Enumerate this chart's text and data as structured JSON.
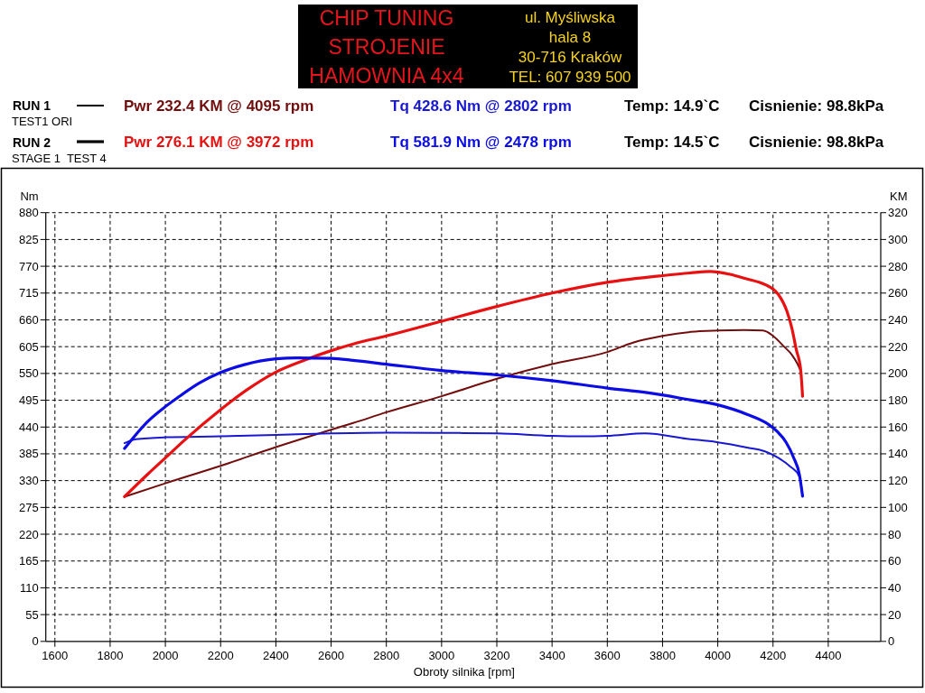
{
  "chart_data": {
    "type": "line",
    "xlabel": "Obroty silnika [rpm]",
    "ylabel": "Nm",
    "y2label": "KM",
    "xlim": [
      1567,
      4590
    ],
    "xticks": [
      1600,
      1800,
      2000,
      2200,
      2400,
      2600,
      2800,
      3000,
      3200,
      3400,
      3600,
      3800,
      4000,
      4200,
      4400
    ],
    "ylim": [
      0,
      880
    ],
    "yticks": [
      0,
      55,
      110,
      165,
      220,
      275,
      330,
      385,
      440,
      495,
      550,
      605,
      660,
      715,
      770,
      825,
      880
    ],
    "y2lim": [
      0,
      320
    ],
    "y2ticks": [
      0,
      20,
      40,
      60,
      80,
      100,
      120,
      140,
      160,
      180,
      200,
      220,
      240,
      260,
      280,
      300,
      320
    ],
    "grid": true,
    "legend": "top",
    "line_style": "solid",
    "annotations": [
      "CHIP TUNING",
      "STROJENIE",
      "HAMOWNIA 4x4",
      "ul. Myśliwska",
      "hala 8",
      "30-716 Kraków",
      "TEL: 607 939 500",
      "RUN 1",
      "TEST1 ORI",
      "Temp: 14.9`C",
      "Cisnienie: 98.8kPa",
      "RUN 2",
      "STAGE 1  TEST 4",
      "Temp: 14.5`C",
      "Cisnienie: 98.8kPa"
    ],
    "series": [
      {
        "name": "Pwr 232.4 KM @ 4095 rpm",
        "color": "#720d0d",
        "axis": "y2",
        "x": [
          1852,
          2000,
          2200,
          2400,
          2600,
          2680,
          2800,
          3000,
          3200,
          3400,
          3600,
          3693,
          3800,
          3902,
          4000,
          4095,
          4164,
          4200,
          4240,
          4268,
          4289,
          4302
        ],
        "values": [
          108,
          118,
          131,
          145,
          158,
          163,
          171,
          183,
          196,
          207,
          216,
          223,
          228,
          231,
          232,
          232.4,
          232,
          228,
          220,
          214,
          207,
          201
        ]
      },
      {
        "name": "Tq 428.6 Nm @ 2802 rpm",
        "color": "#1818d2",
        "x": [
          1852,
          1893,
          2000,
          2200,
          2400,
          2600,
          2802,
          3000,
          3200,
          3400,
          3500,
          3600,
          3737,
          3888,
          3996,
          4106,
          4171,
          4215,
          4260,
          4296,
          4307
        ],
        "values": [
          407,
          415,
          419,
          421,
          424,
          427,
          428.6,
          428,
          427,
          422,
          421,
          422,
          427,
          416,
          409,
          398,
          390,
          378,
          360,
          338,
          298
        ]
      },
      {
        "name": "Pwr 276.1 KM @ 3972 rpm",
        "color": "#e81010",
        "axis": "y2",
        "x": [
          1852,
          1937,
          2000,
          2079,
          2200,
          2297,
          2400,
          2505,
          2600,
          2680,
          2800,
          3000,
          3200,
          3400,
          3600,
          3800,
          3900,
          3972,
          4044,
          4098,
          4175,
          4200,
          4219,
          4251,
          4268,
          4284,
          4300,
          4307
        ],
        "values": [
          108,
          125,
          137,
          152,
          173,
          188,
          201,
          210,
          217,
          222,
          228,
          239,
          250,
          260,
          268,
          273,
          275,
          276.1,
          274,
          271,
          266,
          263,
          259,
          246,
          234,
          218,
          203,
          183
        ]
      },
      {
        "name": "Tq 581.9 Nm @ 2478 rpm",
        "color": "#0c0ce4",
        "x": [
          1852,
          1937,
          2000,
          2046,
          2122,
          2200,
          2286,
          2400,
          2478,
          2600,
          2680,
          2800,
          3000,
          3200,
          3400,
          3600,
          3750,
          3888,
          3996,
          4106,
          4182,
          4215,
          4247,
          4274,
          4296,
          4307
        ],
        "values": [
          396,
          452,
          482,
          501,
          530,
          552,
          568,
          580,
          581.9,
          581,
          577,
          569,
          556,
          547,
          535,
          520,
          510,
          497,
          486,
          466,
          446,
          431,
          409,
          378,
          341,
          298
        ]
      }
    ]
  }
}
